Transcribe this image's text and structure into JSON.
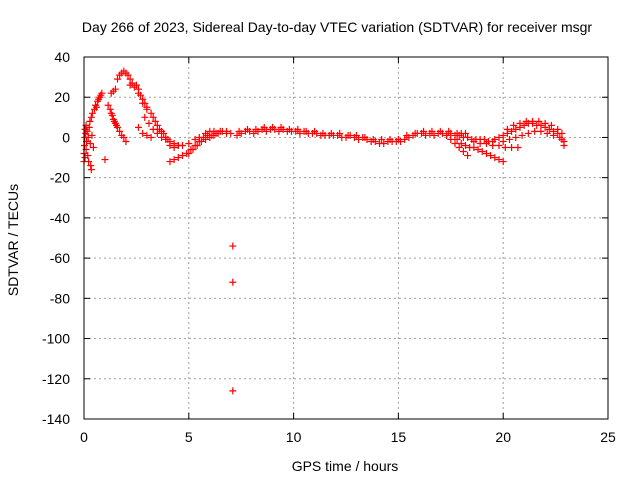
{
  "chart_data": {
    "type": "scatter",
    "title": "Day 266 of 2023, Sidereal Day-to-day VTEC variation (SDTVAR) for receiver msgr",
    "xlabel": "GPS time / hours",
    "ylabel": "SDTVAR / TECUs",
    "xlim": [
      0,
      25
    ],
    "ylim": [
      -140,
      40
    ],
    "xticks": [
      0,
      5,
      10,
      15,
      20,
      25
    ],
    "yticks": [
      -140,
      -120,
      -100,
      -80,
      -60,
      -40,
      -20,
      0,
      20,
      40
    ],
    "grid": true,
    "marker": "+",
    "marker_color": "#ff0000",
    "series": [
      {
        "name": "SDTVAR",
        "points": [
          [
            0.0,
            -12
          ],
          [
            0.0,
            -8
          ],
          [
            0.02,
            -4
          ],
          [
            0.03,
            0
          ],
          [
            0.05,
            4
          ],
          [
            0.05,
            -10
          ],
          [
            0.08,
            2
          ],
          [
            0.1,
            -6
          ],
          [
            0.1,
            6
          ],
          [
            0.12,
            -2
          ],
          [
            0.15,
            3
          ],
          [
            0.18,
            -9
          ],
          [
            0.2,
            0
          ],
          [
            0.22,
            -12
          ],
          [
            0.25,
            5
          ],
          [
            0.28,
            8
          ],
          [
            0.3,
            -3
          ],
          [
            0.32,
            -14
          ],
          [
            0.35,
            -16
          ],
          [
            0.35,
            10
          ],
          [
            0.38,
            1
          ],
          [
            0.4,
            12
          ],
          [
            0.45,
            -5
          ],
          [
            0.5,
            14
          ],
          [
            0.55,
            16
          ],
          [
            0.6,
            15
          ],
          [
            0.65,
            18
          ],
          [
            0.7,
            19
          ],
          [
            0.75,
            20
          ],
          [
            0.8,
            21
          ],
          [
            0.85,
            22
          ],
          [
            1.0,
            -11
          ],
          [
            1.15,
            16
          ],
          [
            1.25,
            14
          ],
          [
            1.3,
            12
          ],
          [
            1.35,
            11
          ],
          [
            1.4,
            9
          ],
          [
            1.45,
            8
          ],
          [
            1.5,
            7
          ],
          [
            1.55,
            6
          ],
          [
            1.6,
            5
          ],
          [
            1.7,
            3
          ],
          [
            1.8,
            1
          ],
          [
            1.9,
            0
          ],
          [
            2.0,
            -2
          ],
          [
            1.3,
            22
          ],
          [
            1.4,
            23
          ],
          [
            1.5,
            24
          ],
          [
            1.6,
            29
          ],
          [
            1.7,
            31
          ],
          [
            1.8,
            32
          ],
          [
            1.9,
            33
          ],
          [
            2.0,
            32
          ],
          [
            2.1,
            31
          ],
          [
            2.2,
            29
          ],
          [
            2.3,
            27
          ],
          [
            2.5,
            26
          ],
          [
            2.6,
            24
          ],
          [
            2.7,
            21
          ],
          [
            2.8,
            19
          ],
          [
            2.9,
            17
          ],
          [
            3.0,
            15
          ],
          [
            2.2,
            26
          ],
          [
            2.4,
            25
          ],
          [
            2.6,
            22
          ],
          [
            2.8,
            17
          ],
          [
            3.0,
            14
          ],
          [
            3.2,
            12
          ],
          [
            3.3,
            10
          ],
          [
            3.4,
            8
          ],
          [
            3.5,
            6
          ],
          [
            3.6,
            4
          ],
          [
            3.7,
            3
          ],
          [
            3.8,
            2
          ],
          [
            3.9,
            0
          ],
          [
            4.0,
            -1
          ],
          [
            4.1,
            -2
          ],
          [
            4.3,
            -3
          ],
          [
            4.5,
            -4
          ],
          [
            2.9,
            10
          ],
          [
            3.1,
            7
          ],
          [
            3.3,
            4
          ],
          [
            3.5,
            2
          ],
          [
            3.7,
            0
          ],
          [
            3.9,
            -1
          ],
          [
            4.1,
            -4
          ],
          [
            4.3,
            -5
          ],
          [
            4.5,
            -4
          ],
          [
            2.6,
            5
          ],
          [
            2.8,
            2
          ],
          [
            3.0,
            1
          ],
          [
            3.2,
            0
          ],
          [
            4.1,
            -12
          ],
          [
            4.3,
            -11
          ],
          [
            4.5,
            -10
          ],
          [
            4.7,
            -9
          ],
          [
            4.9,
            -8
          ],
          [
            5.1,
            -6
          ],
          [
            5.3,
            -4
          ],
          [
            5.5,
            -2
          ],
          [
            5.7,
            0
          ],
          [
            5.9,
            1
          ],
          [
            6.1,
            1
          ],
          [
            6.3,
            2
          ],
          [
            5.0,
            -8
          ],
          [
            5.2,
            -6
          ],
          [
            5.4,
            -4
          ],
          [
            5.6,
            -2
          ],
          [
            5.8,
            -1
          ],
          [
            6.0,
            0
          ],
          [
            6.2,
            1
          ],
          [
            6.4,
            2
          ],
          [
            6.6,
            3
          ],
          [
            6.8,
            3
          ],
          [
            4.7,
            -4
          ],
          [
            5.0,
            -3
          ],
          [
            5.3,
            -1
          ],
          [
            5.5,
            0
          ],
          [
            5.8,
            2
          ],
          [
            6.0,
            3
          ],
          [
            6.2,
            3
          ],
          [
            6.5,
            3
          ],
          [
            6.8,
            2
          ],
          [
            7.0,
            2
          ],
          [
            7.1,
            -54
          ],
          [
            7.1,
            -72
          ],
          [
            7.1,
            -126
          ],
          [
            7.3,
            1
          ],
          [
            7.5,
            2
          ],
          [
            7.7,
            3
          ],
          [
            7.9,
            3
          ],
          [
            8.1,
            2
          ],
          [
            8.3,
            3
          ],
          [
            8.5,
            4
          ],
          [
            8.7,
            3
          ],
          [
            8.9,
            4
          ],
          [
            9.1,
            4
          ],
          [
            9.3,
            3
          ],
          [
            9.5,
            4
          ],
          [
            9.7,
            3
          ],
          [
            9.9,
            3
          ],
          [
            10.1,
            3
          ],
          [
            10.3,
            2
          ],
          [
            10.5,
            3
          ],
          [
            10.7,
            2
          ],
          [
            10.9,
            2
          ],
          [
            11.1,
            2
          ],
          [
            11.3,
            1
          ],
          [
            11.5,
            1
          ],
          [
            11.7,
            1
          ],
          [
            11.9,
            1
          ],
          [
            12.1,
            1
          ],
          [
            12.3,
            0
          ],
          [
            12.5,
            0
          ],
          [
            12.7,
            1
          ],
          [
            12.9,
            0
          ],
          [
            13.1,
            -1
          ],
          [
            13.3,
            0
          ],
          [
            13.5,
            -1
          ],
          [
            13.7,
            -2
          ],
          [
            13.9,
            -2
          ],
          [
            14.1,
            -3
          ],
          [
            14.3,
            -3
          ],
          [
            14.5,
            -2
          ],
          [
            14.7,
            -2
          ],
          [
            14.9,
            -2
          ],
          [
            15.1,
            -2
          ],
          [
            15.3,
            -1
          ],
          [
            15.5,
            0
          ],
          [
            15.7,
            1
          ],
          [
            15.9,
            2
          ],
          [
            16.1,
            2
          ],
          [
            16.3,
            1
          ],
          [
            16.5,
            2
          ],
          [
            16.7,
            1
          ],
          [
            16.9,
            2
          ],
          [
            17.1,
            2
          ],
          [
            17.3,
            1
          ],
          [
            17.5,
            2
          ],
          [
            17.7,
            1
          ],
          [
            17.9,
            1
          ],
          [
            18.1,
            0
          ],
          [
            18.3,
            0
          ],
          [
            18.5,
            -1
          ],
          [
            18.7,
            -1
          ],
          [
            18.9,
            -1
          ],
          [
            19.1,
            -1
          ],
          [
            19.3,
            -2
          ],
          [
            19.5,
            -2
          ],
          [
            7.4,
            3
          ],
          [
            7.8,
            4
          ],
          [
            8.2,
            4
          ],
          [
            8.6,
            5
          ],
          [
            9.0,
            5
          ],
          [
            9.4,
            5
          ],
          [
            9.8,
            4
          ],
          [
            10.2,
            4
          ],
          [
            10.6,
            3
          ],
          [
            11.0,
            3
          ],
          [
            11.4,
            2
          ],
          [
            11.8,
            2
          ],
          [
            12.2,
            2
          ],
          [
            12.6,
            1
          ],
          [
            13.0,
            1
          ],
          [
            13.4,
            0
          ],
          [
            13.8,
            -1
          ],
          [
            14.2,
            -1
          ],
          [
            14.6,
            -1
          ],
          [
            15.0,
            -1
          ],
          [
            15.4,
            1
          ],
          [
            15.8,
            2
          ],
          [
            16.2,
            3
          ],
          [
            16.6,
            3
          ],
          [
            17.0,
            3
          ],
          [
            17.4,
            3
          ],
          [
            17.8,
            2
          ],
          [
            18.2,
            2
          ],
          [
            17.3,
            1
          ],
          [
            17.5,
            -1
          ],
          [
            17.7,
            -3
          ],
          [
            17.9,
            -5
          ],
          [
            18.1,
            -7
          ],
          [
            18.3,
            -9
          ],
          [
            17.8,
            -1
          ],
          [
            18.0,
            -3
          ],
          [
            18.2,
            -4
          ],
          [
            18.4,
            -5
          ],
          [
            18.6,
            -5
          ],
          [
            18.8,
            -6
          ],
          [
            19.0,
            -7
          ],
          [
            19.2,
            -8
          ],
          [
            19.4,
            -9
          ],
          [
            19.6,
            -10
          ],
          [
            19.8,
            -11
          ],
          [
            20.0,
            -12
          ],
          [
            18.0,
            2
          ],
          [
            18.3,
            0
          ],
          [
            18.6,
            -2
          ],
          [
            18.9,
            -3
          ],
          [
            19.2,
            -3
          ],
          [
            19.5,
            -4
          ],
          [
            19.8,
            -4
          ],
          [
            20.1,
            -5
          ],
          [
            20.4,
            -5
          ],
          [
            20.7,
            -5
          ],
          [
            19.6,
            -1
          ],
          [
            19.8,
            0
          ],
          [
            20.0,
            1
          ],
          [
            20.2,
            2
          ],
          [
            20.4,
            3
          ],
          [
            20.6,
            4
          ],
          [
            20.8,
            5
          ],
          [
            21.0,
            6
          ],
          [
            21.2,
            7
          ],
          [
            21.4,
            7
          ],
          [
            21.6,
            6
          ],
          [
            21.8,
            6
          ],
          [
            22.0,
            5
          ],
          [
            22.2,
            4
          ],
          [
            22.4,
            3
          ],
          [
            22.6,
            2
          ],
          [
            22.8,
            -1
          ],
          [
            22.9,
            -4
          ],
          [
            20.0,
            -2
          ],
          [
            20.3,
            -1
          ],
          [
            20.6,
            0
          ],
          [
            20.9,
            1
          ],
          [
            21.2,
            2
          ],
          [
            21.5,
            3
          ],
          [
            21.8,
            3
          ],
          [
            22.1,
            2
          ],
          [
            22.4,
            1
          ],
          [
            22.7,
            0
          ],
          [
            22.9,
            -2
          ],
          [
            20.2,
            4
          ],
          [
            20.5,
            6
          ],
          [
            20.8,
            7
          ],
          [
            21.1,
            8
          ],
          [
            21.4,
            8
          ],
          [
            21.7,
            8
          ],
          [
            22.0,
            7
          ],
          [
            22.3,
            6
          ],
          [
            22.6,
            4
          ],
          [
            22.8,
            2
          ]
        ]
      }
    ]
  }
}
